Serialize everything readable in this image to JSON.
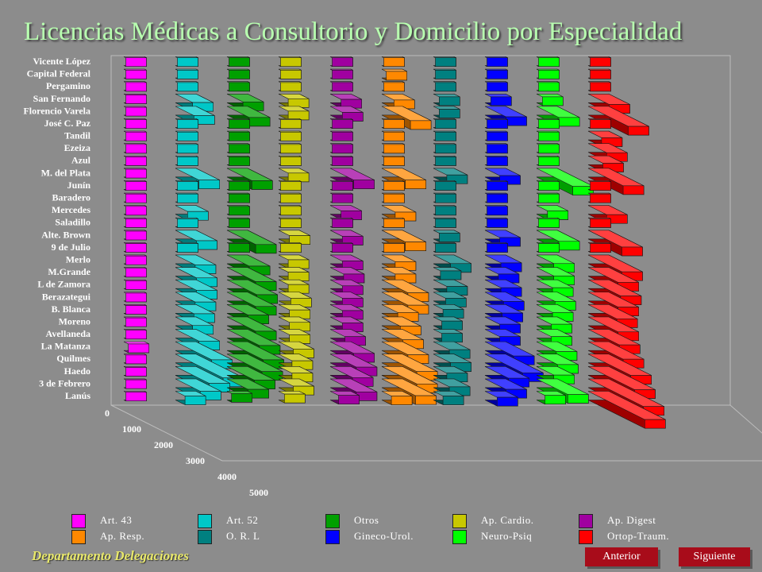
{
  "header": {
    "title": "Licencias Médicas a Consultorio y Domicilio por Especialidad"
  },
  "footer": {
    "department": "Departamento Delegaciones"
  },
  "nav": {
    "prev_label": "Anterior",
    "next_label": "Siguiente"
  },
  "chart_data": {
    "type": "bar",
    "title": "Licencias Médicas a Consultorio y Domicilio por Especialidad",
    "categories": [
      "Vicente López",
      "Capital Federal",
      "Pergamino",
      "San Fernando",
      "Florencio Varela",
      "José C. Paz",
      "Tandil",
      "Ezeiza",
      "Azul",
      "M. del Plata",
      "Junín",
      "Baradero",
      "Mercedes",
      "Saladillo",
      "Alte. Brown",
      "9 de Julio",
      "Merlo",
      "M.Grande",
      "L de Zamora",
      "Berazategui",
      "B. Blanca",
      "Moreno",
      "Avellaneda",
      "La Matanza",
      "Quilmes",
      "Haedo",
      "3 de Febrero",
      "Lanús"
    ],
    "value_axis": {
      "ticks": [
        "0",
        "1000",
        "2000",
        "3000",
        "4000",
        "5000"
      ],
      "range": [
        0,
        5000
      ]
    },
    "series": [
      {
        "name": "Art. 43",
        "color": "#ff00ff",
        "values": [
          0,
          0,
          0,
          0,
          0,
          0,
          0,
          0,
          0,
          0,
          0,
          0,
          0,
          0,
          0,
          0,
          0,
          0,
          0,
          0,
          0,
          0,
          0,
          200,
          0,
          0,
          0,
          0
        ]
      },
      {
        "name": "Art. 52",
        "color": "#00c8c8",
        "values": [
          0,
          0,
          0,
          1200,
          1300,
          0,
          0,
          0,
          0,
          1700,
          0,
          0,
          800,
          0,
          1500,
          0,
          1400,
          1500,
          1500,
          1400,
          1300,
          1200,
          1700,
          2700,
          3600,
          2500,
          1800,
          600
        ]
      },
      {
        "name": "Otros",
        "color": "#00a000",
        "values": [
          0,
          0,
          0,
          1100,
          1600,
          0,
          0,
          0,
          0,
          1800,
          0,
          0,
          0,
          0,
          2100,
          0,
          1600,
          2100,
          2200,
          2100,
          1500,
          2100,
          2400,
          2700,
          2600,
          2000,
          1500,
          200
        ]
      },
      {
        "name": "Ap. Cardio.",
        "color": "#c8c800",
        "values": [
          0,
          0,
          0,
          600,
          600,
          0,
          0,
          0,
          0,
          600,
          0,
          0,
          0,
          0,
          700,
          0,
          600,
          600,
          600,
          800,
          700,
          700,
          700,
          1000,
          900,
          900,
          1000,
          300
        ]
      },
      {
        "name": "Ap. Digest",
        "color": "#a000a0",
        "values": [
          0,
          0,
          0,
          700,
          800,
          0,
          0,
          0,
          0,
          1700,
          0,
          0,
          700,
          0,
          800,
          0,
          800,
          900,
          800,
          800,
          800,
          800,
          1000,
          1700,
          1900,
          1600,
          1900,
          500
        ]
      },
      {
        "name": "Ap. Resp.",
        "color": "#ff8800",
        "values": [
          0,
          200,
          0,
          800,
          2100,
          0,
          0,
          0,
          0,
          1700,
          0,
          0,
          900,
          0,
          1700,
          0,
          900,
          900,
          1900,
          1900,
          1100,
          1300,
          1500,
          1900,
          2600,
          2600,
          2500,
          600
        ]
      },
      {
        "name": "O. R. L",
        "color": "#008080",
        "values": [
          0,
          0,
          0,
          300,
          300,
          0,
          0,
          0,
          0,
          900,
          0,
          0,
          0,
          0,
          300,
          0,
          1200,
          400,
          900,
          800,
          600,
          500,
          500,
          1100,
          1200,
          900,
          1100,
          600
        ]
      },
      {
        "name": "Gineco-Urol.",
        "color": "#0000ff",
        "values": [
          0,
          0,
          0,
          300,
          1500,
          0,
          0,
          0,
          0,
          1000,
          0,
          0,
          0,
          0,
          1000,
          0,
          1100,
          900,
          1100,
          1300,
          1200,
          1000,
          1000,
          2100,
          2800,
          1700,
          1500,
          800
        ]
      },
      {
        "name": "Neuro-Psiq",
        "color": "#00ff00",
        "values": [
          0,
          0,
          0,
          300,
          1600,
          0,
          0,
          0,
          0,
          2700,
          0,
          0,
          700,
          0,
          1600,
          0,
          1200,
          1200,
          1100,
          1300,
          1100,
          1000,
          1000,
          1400,
          1500,
          1200,
          2300,
          500
        ]
      },
      {
        "name": "Ortop-Traum.",
        "color": "#ff0000",
        "values": [
          0,
          0,
          0,
          1500,
          3000,
          0,
          900,
          1300,
          1000,
          2600,
          0,
          0,
          1300,
          0,
          2500,
          0,
          2500,
          2200,
          2400,
          2200,
          2100,
          2200,
          2300,
          2600,
          3200,
          3500,
          4200,
          4300
        ]
      }
    ]
  }
}
